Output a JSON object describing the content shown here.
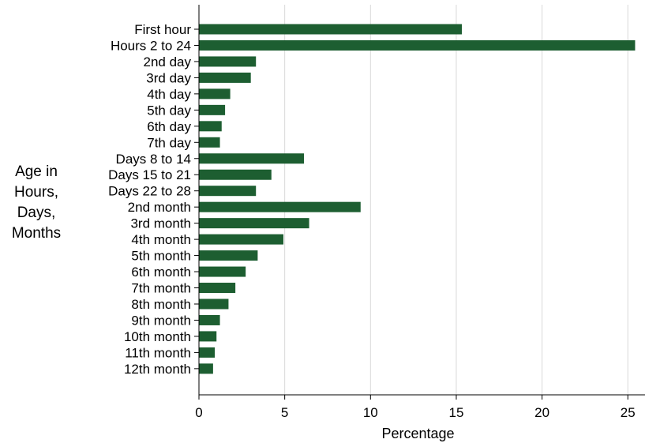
{
  "chart_data": {
    "type": "bar",
    "orientation": "horizontal",
    "categories": [
      "First hour",
      "Hours 2 to 24",
      "2nd day",
      "3rd day",
      "4th day",
      "5th day",
      "6th day",
      "7th day",
      "Days 8 to 14",
      "Days 15 to 21",
      "Days 22 to 28",
      "2nd month",
      "3rd month",
      "4th month",
      "5th month",
      "6th month",
      "7th month",
      "8th month",
      "9th month",
      "10th month",
      "11th month",
      "12th month"
    ],
    "values": [
      15.3,
      25.4,
      3.3,
      3.0,
      1.8,
      1.5,
      1.3,
      1.2,
      6.1,
      4.2,
      3.3,
      9.4,
      6.4,
      4.9,
      3.4,
      2.7,
      2.1,
      1.7,
      1.2,
      1.0,
      0.9,
      0.8
    ],
    "xlabel": "Percentage",
    "ylabel": "Age in Hours, Days, Months",
    "ylabel_lines": [
      "Age in",
      "Hours,",
      "Days,",
      "Months"
    ],
    "xticks": [
      0,
      5,
      10,
      15,
      20,
      25
    ],
    "xlim": [
      0,
      26
    ],
    "grid": "vertical",
    "bar_color": "#1d5e31",
    "grid_color": "#d9d9d9"
  }
}
